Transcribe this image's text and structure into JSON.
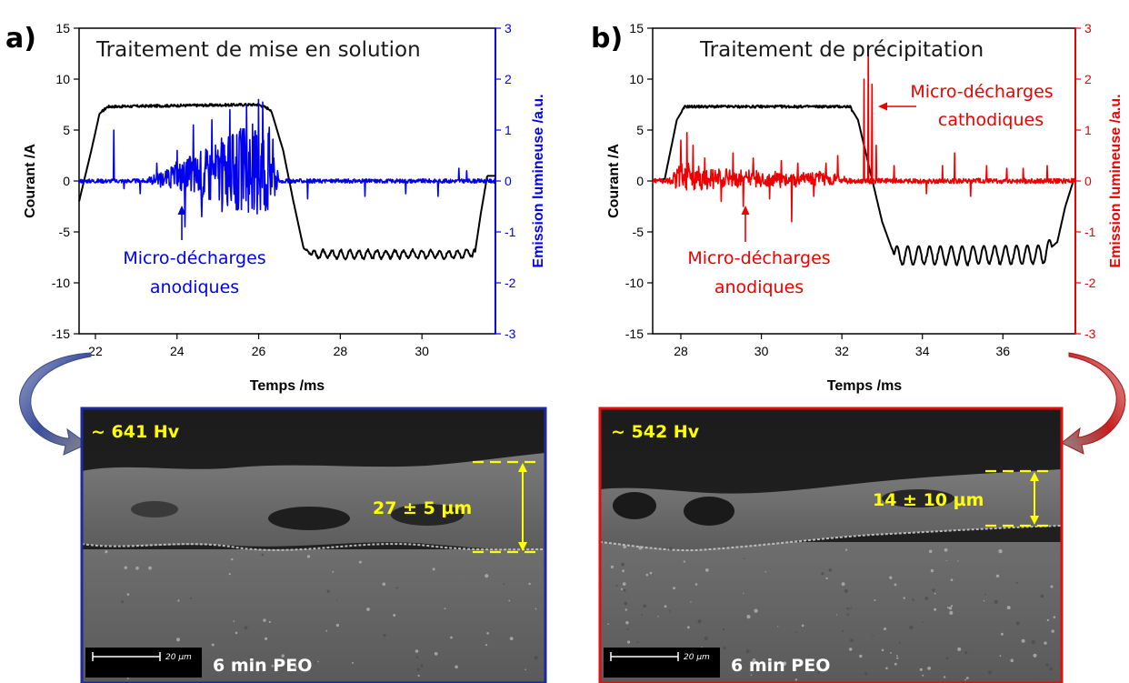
{
  "colors": {
    "blue": "#0000ee",
    "red": "#ee0000",
    "black": "#000000",
    "yellow": "#ffff00"
  },
  "panels": [
    {
      "letter": "a)",
      "title": "Traitement de mise en solution",
      "accent": "#0000ee",
      "sem": {
        "hardness": "~ 641 Hv",
        "thickness": "27 ± 5 µm",
        "duration": "6 min PEO",
        "scale": "20 µm"
      }
    },
    {
      "letter": "b)",
      "title": "Traitement de précipitation",
      "accent": "#ee0000",
      "sem": {
        "hardness": "~ 542 Hv",
        "thickness": "14 ± 10 µm",
        "duration": "6 min PEO",
        "scale": "20 µm"
      }
    }
  ],
  "chart_data": [
    {
      "type": "line",
      "title": "Traitement de mise en solution",
      "xlabel": "Temps /ms",
      "ylabel": "Courant /A",
      "y2label": "Emission lumineuse /a.u.",
      "xlim": [
        21.6,
        31.8
      ],
      "ylim": [
        -15,
        15
      ],
      "y2lim": [
        -3,
        3
      ],
      "xticks": [
        22,
        24,
        26,
        28,
        30
      ],
      "yticks": [
        15,
        10,
        5,
        0,
        -5,
        -10,
        -15
      ],
      "y2ticks": [
        3,
        2,
        1,
        0,
        -1,
        -2,
        -3
      ],
      "annotations": [
        {
          "text_lines": [
            "Micro-décharges",
            "anodiques"
          ]
        }
      ],
      "series": [
        {
          "axis": "left",
          "color": "#000000",
          "points": [
            [
              21.6,
              -2.0
            ],
            [
              21.9,
              3.0
            ],
            [
              22.1,
              6.6
            ],
            [
              22.3,
              7.3
            ],
            [
              24.0,
              7.4
            ],
            [
              26.0,
              7.5
            ],
            [
              26.3,
              7.0
            ],
            [
              26.6,
              3.0
            ],
            [
              26.85,
              -2.0
            ],
            [
              27.1,
              -6.6
            ],
            [
              27.3,
              -7.2
            ],
            [
              29.0,
              -7.2
            ],
            [
              31.0,
              -7.2
            ],
            [
              31.3,
              -7.0
            ],
            [
              31.45,
              -3.0
            ],
            [
              31.6,
              0.5
            ],
            [
              31.75,
              0.5
            ]
          ],
          "ripple": {
            "from": 27.3,
            "to": 31.3,
            "amplitude": 0.4,
            "period": 0.22
          }
        },
        {
          "axis": "right",
          "color": "#0000ee",
          "baseline": 0.0,
          "noise": 0.04,
          "envelope": [
            [
              23.2,
              0.0
            ],
            [
              24.0,
              0.25
            ],
            [
              24.6,
              0.45
            ],
            [
              25.3,
              0.65
            ],
            [
              25.9,
              0.85
            ],
            [
              26.3,
              0.85
            ],
            [
              26.5,
              0.0
            ]
          ],
          "spikes": [
            [
              22.45,
              1.0
            ],
            [
              22.7,
              -0.15
            ],
            [
              23.1,
              -0.25
            ],
            [
              23.5,
              0.35
            ],
            [
              24.0,
              0.6
            ],
            [
              24.2,
              -0.9
            ],
            [
              24.4,
              1.1
            ],
            [
              24.6,
              -0.7
            ],
            [
              24.85,
              1.2
            ],
            [
              25.1,
              -0.6
            ],
            [
              25.3,
              1.4
            ],
            [
              25.5,
              -0.55
            ],
            [
              25.7,
              1.5
            ],
            [
              25.9,
              -0.4
            ],
            [
              26.0,
              1.6
            ],
            [
              26.1,
              1.55
            ],
            [
              26.2,
              -0.3
            ],
            [
              27.2,
              -0.35
            ],
            [
              28.6,
              -0.3
            ],
            [
              29.6,
              -0.25
            ],
            [
              30.4,
              -0.3
            ],
            [
              30.9,
              0.25
            ],
            [
              31.1,
              0.2
            ]
          ]
        }
      ]
    },
    {
      "type": "line",
      "title": "Traitement de précipitation",
      "xlabel": "Temps /ms",
      "ylabel": "Courant /A",
      "y2label": "Emission lumineuse /a.u.",
      "xlim": [
        27.3,
        37.8
      ],
      "ylim": [
        -15,
        15
      ],
      "y2lim": [
        -3,
        3
      ],
      "xticks": [
        28,
        30,
        32,
        34,
        36
      ],
      "yticks": [
        15,
        10,
        5,
        0,
        -5,
        -10,
        -15
      ],
      "y2ticks": [
        3,
        2,
        1,
        0,
        -1,
        -2,
        -3
      ],
      "annotations": [
        {
          "text_lines": [
            "Micro-décharges",
            "cathodiques"
          ]
        },
        {
          "text_lines": [
            "Micro-décharges",
            "anodiques"
          ]
        }
      ],
      "series": [
        {
          "axis": "left",
          "color": "#000000",
          "points": [
            [
              27.3,
              0.0
            ],
            [
              27.6,
              0.2
            ],
            [
              27.9,
              6.0
            ],
            [
              28.1,
              7.3
            ],
            [
              30.0,
              7.3
            ],
            [
              32.2,
              7.3
            ],
            [
              32.4,
              6.0
            ],
            [
              32.7,
              1.0
            ],
            [
              33.0,
              -4.0
            ],
            [
              33.3,
              -7.3
            ],
            [
              35.0,
              -7.3
            ],
            [
              37.0,
              -7.2
            ],
            [
              37.35,
              -6.0
            ],
            [
              37.55,
              -2.5
            ],
            [
              37.75,
              0.0
            ]
          ],
          "ripple": {
            "from": 33.3,
            "to": 37.2,
            "amplitude": 0.9,
            "period": 0.27
          }
        },
        {
          "axis": "right",
          "color": "#ee0000",
          "baseline": 0.0,
          "noise": 0.05,
          "envelope": [
            [
              27.7,
              0.0
            ],
            [
              28.0,
              0.3
            ],
            [
              28.4,
              0.2
            ],
            [
              29.0,
              0.15
            ],
            [
              30.5,
              0.12
            ],
            [
              31.8,
              0.1
            ],
            [
              32.2,
              0.0
            ]
          ],
          "spikes": [
            [
              28.0,
              0.8
            ],
            [
              28.15,
              0.95
            ],
            [
              28.3,
              0.7
            ],
            [
              28.6,
              0.45
            ],
            [
              29.0,
              -0.4
            ],
            [
              29.3,
              0.55
            ],
            [
              29.55,
              -0.5
            ],
            [
              29.8,
              0.45
            ],
            [
              30.2,
              -0.35
            ],
            [
              30.5,
              0.4
            ],
            [
              30.75,
              -0.8
            ],
            [
              30.9,
              0.35
            ],
            [
              31.3,
              -0.3
            ],
            [
              31.6,
              0.35
            ],
            [
              31.9,
              0.5
            ],
            [
              32.55,
              2.0
            ],
            [
              32.65,
              2.55
            ],
            [
              32.75,
              1.9
            ],
            [
              32.85,
              0.7
            ],
            [
              33.3,
              0.3
            ],
            [
              34.1,
              -0.25
            ],
            [
              34.5,
              0.3
            ],
            [
              34.8,
              0.55
            ],
            [
              35.2,
              -0.3
            ],
            [
              35.6,
              0.3
            ],
            [
              36.1,
              0.25
            ],
            [
              36.5,
              0.25
            ],
            [
              37.1,
              0.3
            ]
          ]
        }
      ]
    }
  ]
}
